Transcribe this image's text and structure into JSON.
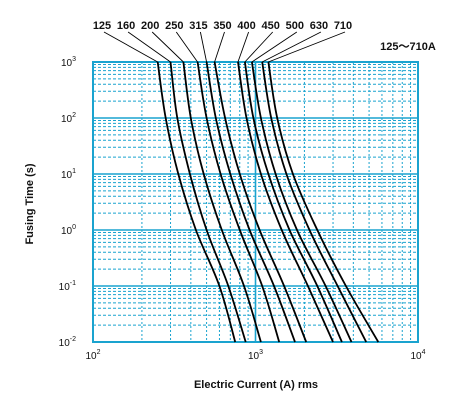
{
  "chart_data": {
    "type": "line",
    "title": "125～710A",
    "xlabel": "Electric Current (A) rms",
    "ylabel": "Fusing Time (s)",
    "x_scale": "log",
    "y_scale": "log",
    "xlim": [
      100,
      10000
    ],
    "ylim": [
      0.01,
      1000
    ],
    "x_ticks": [
      {
        "base": "10",
        "exp": "2"
      },
      {
        "base": "10",
        "exp": "3"
      },
      {
        "base": "10",
        "exp": "4"
      }
    ],
    "y_ticks": [
      {
        "base": "10",
        "exp": "3"
      },
      {
        "base": "10",
        "exp": "2"
      },
      {
        "base": "10",
        "exp": "1"
      },
      {
        "base": "10",
        "exp": "0"
      },
      {
        "base": "10",
        "exp": "-1"
      },
      {
        "base": "10",
        "exp": "-2"
      }
    ],
    "grid": true,
    "grid_color": "#1aa3cf",
    "curve_color": "#000000",
    "series": [
      {
        "name": "125",
        "points": [
          [
            250,
            1000
          ],
          [
            280,
            100
          ],
          [
            335,
            10
          ],
          [
            430,
            1
          ],
          [
            600,
            0.1
          ],
          [
            750,
            0.01
          ]
        ]
      },
      {
        "name": "160",
        "points": [
          [
            300,
            1000
          ],
          [
            330,
            100
          ],
          [
            395,
            10
          ],
          [
            500,
            1
          ],
          [
            680,
            0.1
          ],
          [
            870,
            0.01
          ]
        ]
      },
      {
        "name": "200",
        "points": [
          [
            360,
            1000
          ],
          [
            400,
            100
          ],
          [
            480,
            10
          ],
          [
            620,
            1
          ],
          [
            850,
            0.1
          ],
          [
            1080,
            0.01
          ]
        ]
      },
      {
        "name": "250",
        "points": [
          [
            440,
            1000
          ],
          [
            500,
            100
          ],
          [
            610,
            10
          ],
          [
            800,
            1
          ],
          [
            1100,
            0.1
          ],
          [
            1400,
            0.01
          ]
        ]
      },
      {
        "name": "315",
        "points": [
          [
            500,
            1000
          ],
          [
            570,
            100
          ],
          [
            700,
            10
          ],
          [
            920,
            1
          ],
          [
            1300,
            0.1
          ],
          [
            1750,
            0.01
          ]
        ]
      },
      {
        "name": "350",
        "points": [
          [
            560,
            1000
          ],
          [
            650,
            100
          ],
          [
            800,
            10
          ],
          [
            1060,
            1
          ],
          [
            1500,
            0.1
          ],
          [
            2050,
            0.01
          ]
        ]
      },
      {
        "name": "400",
        "points": [
          [
            780,
            1000
          ],
          [
            880,
            100
          ],
          [
            1080,
            10
          ],
          [
            1450,
            1
          ],
          [
            2100,
            0.1
          ],
          [
            3000,
            0.01
          ]
        ]
      },
      {
        "name": "450",
        "points": [
          [
            860,
            1000
          ],
          [
            970,
            100
          ],
          [
            1200,
            10
          ],
          [
            1620,
            1
          ],
          [
            2400,
            0.1
          ],
          [
            3400,
            0.01
          ]
        ]
      },
      {
        "name": "500",
        "points": [
          [
            950,
            1000
          ],
          [
            1080,
            100
          ],
          [
            1330,
            10
          ],
          [
            1800,
            1
          ],
          [
            2700,
            0.1
          ],
          [
            3900,
            0.01
          ]
        ]
      },
      {
        "name": "630",
        "points": [
          [
            1100,
            1000
          ],
          [
            1250,
            100
          ],
          [
            1550,
            10
          ],
          [
            2150,
            1
          ],
          [
            3200,
            0.1
          ],
          [
            4800,
            0.01
          ]
        ]
      },
      {
        "name": "710",
        "points": [
          [
            1200,
            1000
          ],
          [
            1360,
            100
          ],
          [
            1700,
            10
          ],
          [
            2400,
            1
          ],
          [
            3600,
            0.1
          ],
          [
            5700,
            0.01
          ]
        ]
      }
    ]
  }
}
